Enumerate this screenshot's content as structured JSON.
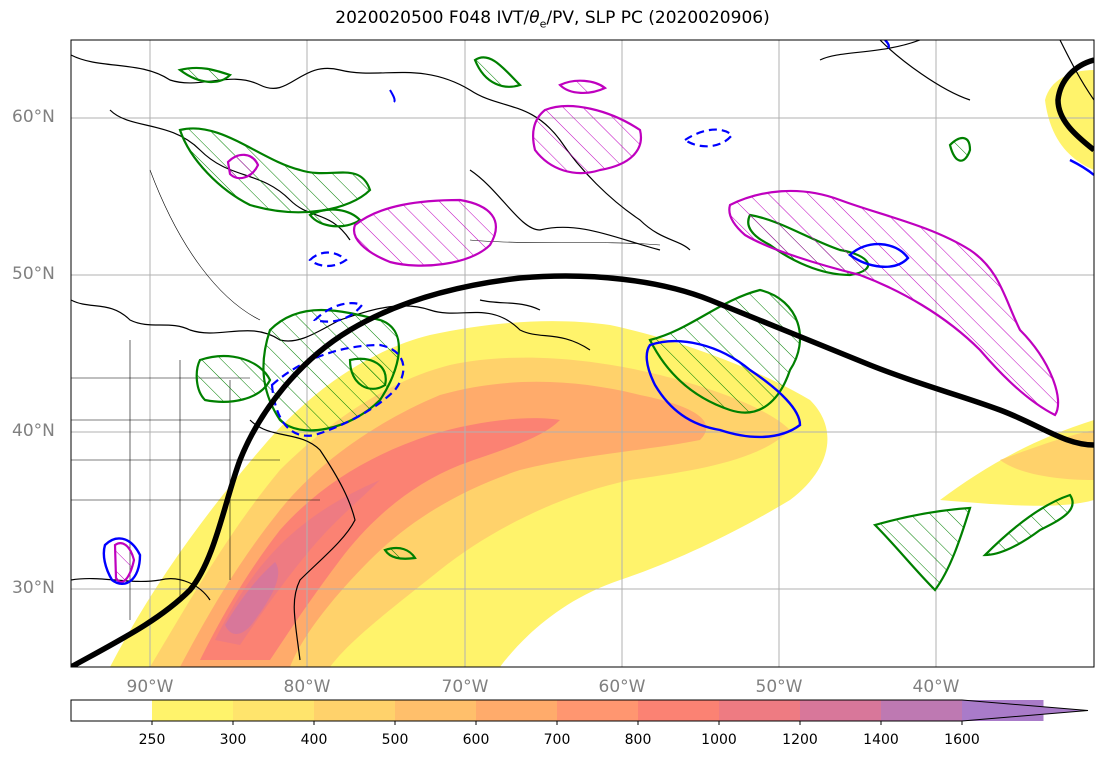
{
  "title": {
    "prefix": "2020020500 F048 IVT/",
    "theta_symbol": "θ",
    "theta_sub": "e",
    "suffix": "/PV, SLP PC (2020020906)"
  },
  "map": {
    "projection": "plate-carree",
    "lon_range": [
      -95,
      -30
    ],
    "lat_range": [
      25,
      65
    ],
    "lat_ticks": [
      {
        "value": 60,
        "label": "60°N"
      },
      {
        "value": 50,
        "label": "50°N"
      },
      {
        "value": 40,
        "label": "40°N"
      },
      {
        "value": 30,
        "label": "30°N"
      }
    ],
    "lon_ticks": [
      {
        "value": -90,
        "label": "90°W"
      },
      {
        "value": -80,
        "label": "80°W"
      },
      {
        "value": -70,
        "label": "70°W"
      },
      {
        "value": -60,
        "label": "60°W"
      },
      {
        "value": -50,
        "label": "50°W"
      },
      {
        "value": -40,
        "label": "40°W"
      }
    ],
    "grid": true,
    "layers": {
      "ivt_fill": "IVT shaded contours (yellow to purple)",
      "theta_e": "green hatched contours",
      "pv": "magenta hatched contours",
      "slp_pc_solid": "blue solid contours",
      "slp_pc_dashed": "blue dashed contours",
      "reference_line": "thick black curve"
    }
  },
  "colorbar": {
    "levels": [
      "250",
      "300",
      "400",
      "500",
      "600",
      "700",
      "800",
      "1000",
      "1200",
      "1400",
      "1600"
    ],
    "colors": [
      "#ffffff",
      "#fff36b",
      "#ffe46c",
      "#ffd26b",
      "#ffbf6b",
      "#ffab6b",
      "#ff9670",
      "#fb8273",
      "#ee7b82",
      "#d8779a",
      "#be79b2",
      "#a97bc9"
    ],
    "extend": "max"
  },
  "colors": {
    "green": "#008000",
    "magenta": "#bf00bf",
    "blue": "#0000ff",
    "black": "#000000",
    "grid": "#b0b0b0"
  }
}
